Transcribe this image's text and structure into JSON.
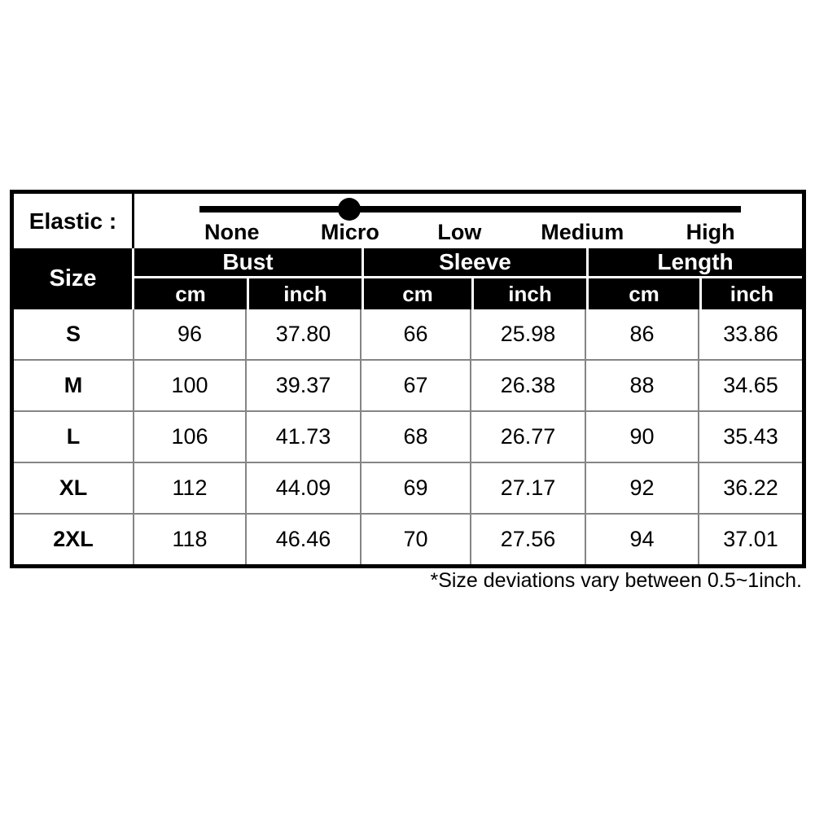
{
  "elastic": {
    "label": "Elastic :",
    "levels": [
      "None",
      "Micro",
      "Low",
      "Medium",
      "High"
    ],
    "selected": "Micro"
  },
  "table": {
    "size_header": "Size",
    "groups": [
      {
        "label": "Bust",
        "units": [
          "cm",
          "inch"
        ]
      },
      {
        "label": "Sleeve",
        "units": [
          "cm",
          "inch"
        ]
      },
      {
        "label": "Length",
        "units": [
          "cm",
          "inch"
        ]
      }
    ],
    "rows": [
      {
        "size": "S",
        "values": [
          "96",
          "37.80",
          "66",
          "25.98",
          "86",
          "33.86"
        ]
      },
      {
        "size": "M",
        "values": [
          "100",
          "39.37",
          "67",
          "26.38",
          "88",
          "34.65"
        ]
      },
      {
        "size": "L",
        "values": [
          "106",
          "41.73",
          "68",
          "26.77",
          "90",
          "35.43"
        ]
      },
      {
        "size": "XL",
        "values": [
          "112",
          "44.09",
          "69",
          "27.17",
          "92",
          "36.22"
        ]
      },
      {
        "size": "2XL",
        "values": [
          "118",
          "46.46",
          "70",
          "27.56",
          "94",
          "37.01"
        ]
      }
    ]
  },
  "footnote": "*Size deviations vary between 0.5~1inch.",
  "colors": {
    "header_bg": "#000000",
    "header_text": "#ffffff",
    "grid_line": "#858585",
    "border": "#000000"
  },
  "chart_data": {
    "type": "table",
    "title": "Garment size chart",
    "columns": [
      "Size",
      "Bust cm",
      "Bust inch",
      "Sleeve cm",
      "Sleeve inch",
      "Length cm",
      "Length inch"
    ],
    "rows": [
      [
        "S",
        96,
        37.8,
        66,
        25.98,
        86,
        33.86
      ],
      [
        "M",
        100,
        39.37,
        67,
        26.38,
        88,
        34.65
      ],
      [
        "L",
        106,
        41.73,
        68,
        26.77,
        90,
        35.43
      ],
      [
        "XL",
        112,
        44.09,
        69,
        27.17,
        92,
        36.22
      ],
      [
        "2XL",
        118,
        46.46,
        70,
        27.56,
        94,
        37.01
      ]
    ],
    "elastic_scale": {
      "levels": [
        "None",
        "Micro",
        "Low",
        "Medium",
        "High"
      ],
      "selected": "Micro"
    },
    "note": "*Size deviations vary between 0.5~1inch."
  }
}
